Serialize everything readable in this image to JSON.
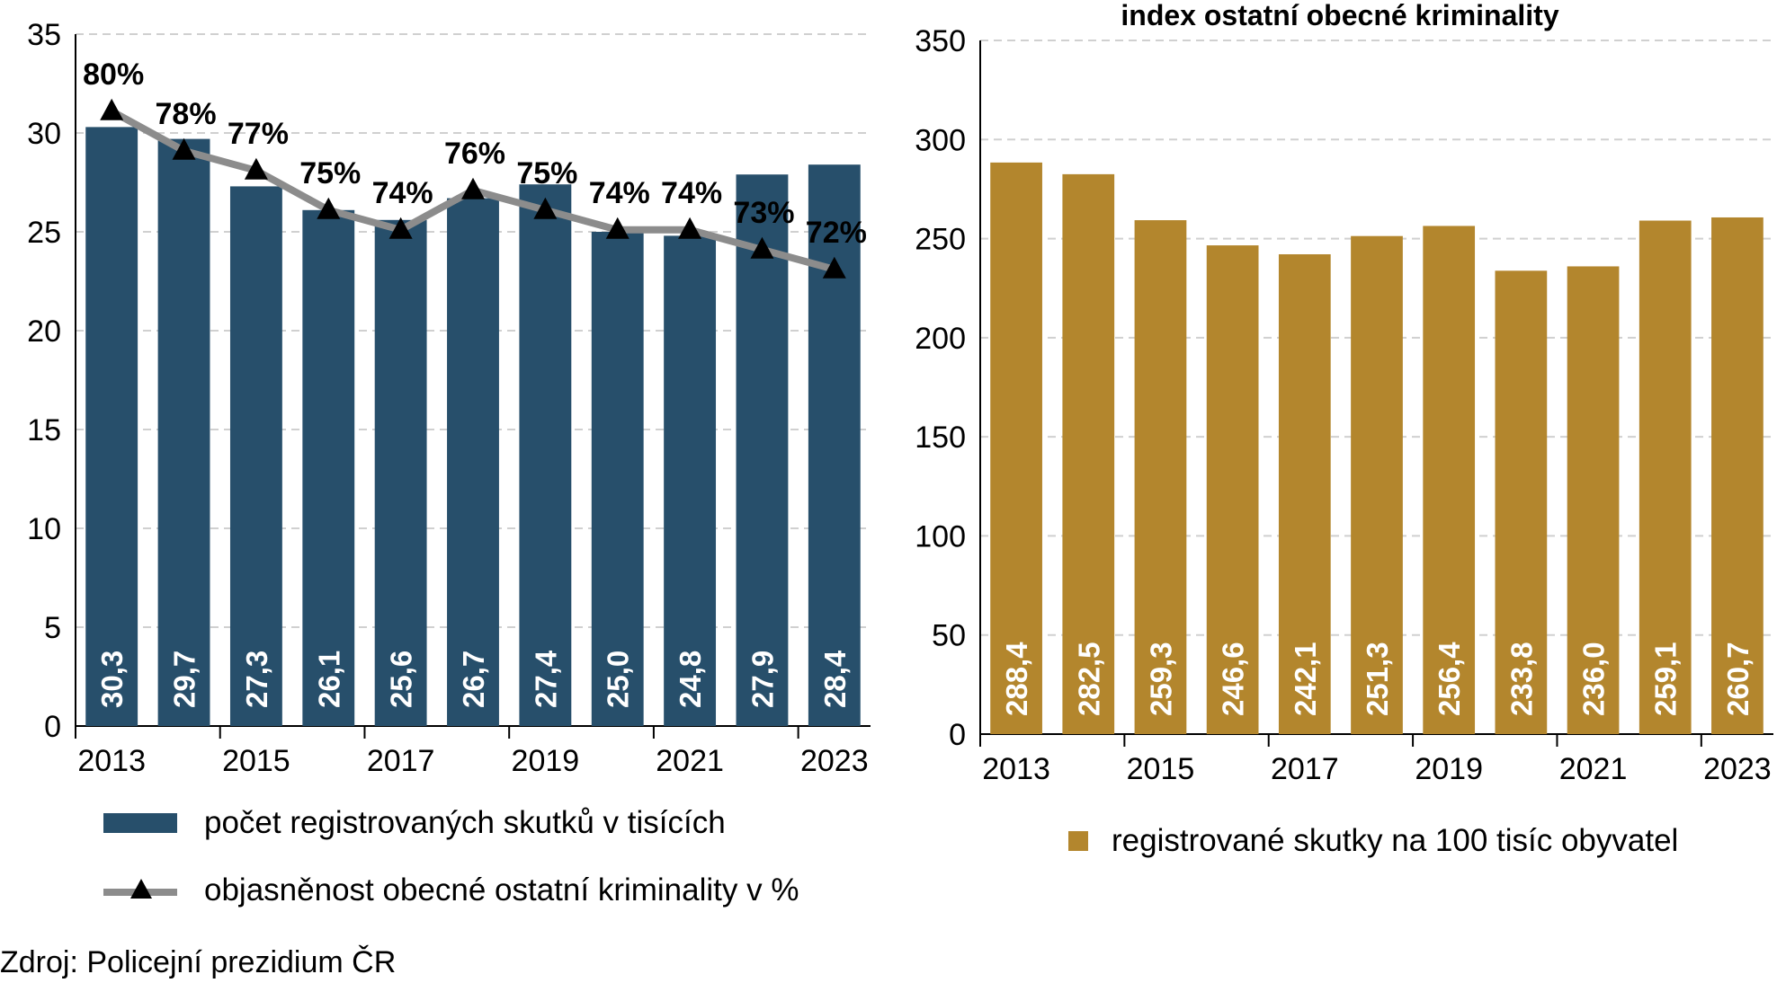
{
  "chart_data": [
    {
      "type": "bar",
      "x": [
        "2013",
        "2014",
        "2015",
        "2016",
        "2017",
        "2018",
        "2019",
        "2020",
        "2021",
        "2022",
        "2023"
      ],
      "tick_labels": [
        "2013",
        "2015",
        "2017",
        "2019",
        "2021",
        "2023"
      ],
      "ylim": [
        0,
        35
      ],
      "yticks": [
        "0",
        "5",
        "10",
        "15",
        "20",
        "25",
        "30",
        "35"
      ],
      "grid": true,
      "series": [
        {
          "name": "počet registrovaných skutků v tisících",
          "type": "bar",
          "color": "#274f6b",
          "values": [
            30.3,
            29.7,
            27.3,
            26.1,
            25.6,
            26.7,
            27.4,
            25.0,
            24.8,
            27.9,
            28.4
          ],
          "labels": [
            "30,3",
            "29,7",
            "27,3",
            "26,1",
            "25,6",
            "26,7",
            "27,4",
            "25,0",
            "24,8",
            "27,9",
            "28,4"
          ]
        },
        {
          "name": "objasněnost obecné ostatní kriminality v %",
          "type": "line",
          "color": "#8c8c8c",
          "marker": "triangle",
          "values": [
            80,
            78,
            77,
            75,
            74,
            76,
            75,
            74,
            74,
            73,
            72
          ],
          "labels": [
            "80%",
            "78%",
            "77%",
            "75%",
            "74%",
            "76%",
            "75%",
            "74%",
            "74%",
            "73%",
            "72%"
          ]
        }
      ]
    },
    {
      "type": "bar",
      "title": "index ostatní obecné kriminality",
      "x": [
        "2013",
        "2014",
        "2015",
        "2016",
        "2017",
        "2018",
        "2019",
        "2020",
        "2021",
        "2022",
        "2023"
      ],
      "tick_labels": [
        "2013",
        "2015",
        "2017",
        "2019",
        "2021",
        "2023"
      ],
      "ylim": [
        0,
        350
      ],
      "yticks": [
        "0",
        "50",
        "100",
        "150",
        "200",
        "250",
        "300",
        "350"
      ],
      "grid": true,
      "series": [
        {
          "name": "registrované skutky na 100 tisíc obyvatel",
          "type": "bar",
          "color": "#b3862d",
          "values": [
            288.4,
            282.5,
            259.3,
            246.6,
            242.1,
            251.3,
            256.4,
            233.8,
            236.0,
            259.1,
            260.7
          ],
          "labels": [
            "288,4",
            "282,5",
            "259,3",
            "246,6",
            "242,1",
            "251,3",
            "256,4",
            "233,8",
            "236,0",
            "259,1",
            "260,7"
          ]
        }
      ]
    }
  ],
  "source": "Zdroj: Policejní prezidium ČR"
}
